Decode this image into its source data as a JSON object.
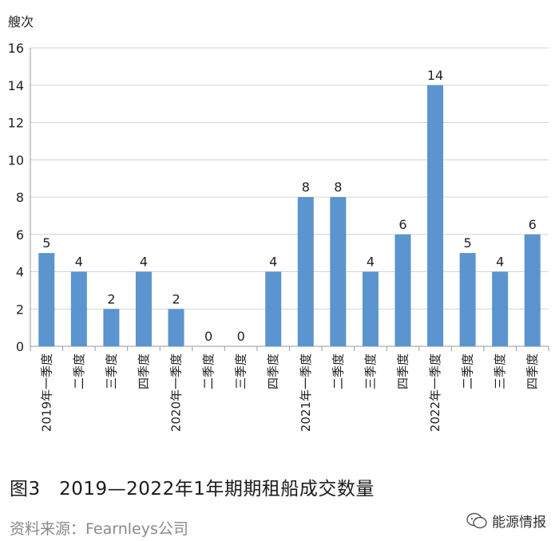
{
  "chart_data": {
    "type": "bar",
    "ylabel": "艘次",
    "ylim": [
      0,
      16
    ],
    "yticks": [
      0,
      2,
      4,
      6,
      8,
      10,
      12,
      14,
      16
    ],
    "grid": true,
    "bar_color": "#5b94cf",
    "categories": [
      "2019年一季度",
      "二季度",
      "三季度",
      "四季度",
      "2020年一季度",
      "二季度",
      "三季度",
      "四季度",
      "2021年一季度",
      "二季度",
      "三季度",
      "四季度",
      "2022年一季度",
      "二季度",
      "三季度",
      "四季度"
    ],
    "values": [
      5,
      4,
      2,
      4,
      2,
      0,
      0,
      4,
      8,
      8,
      4,
      6,
      14,
      5,
      4,
      6
    ]
  },
  "caption": "图3　2019—2022年1年期期租船成交数量",
  "source": "资料来源：Fearnleys公司",
  "brand": "能源情报"
}
